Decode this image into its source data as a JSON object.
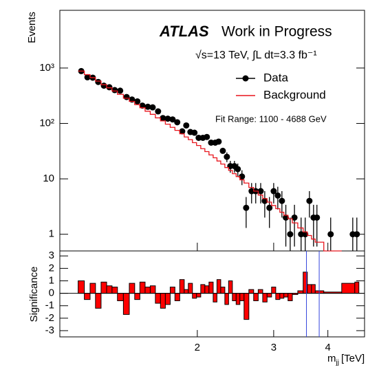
{
  "chart_data": [
    {
      "type": "scatter",
      "title": {
        "brand": "ATLAS",
        "status": "Work in Progress"
      },
      "subtitle": "√s=13 TeV, ∫L dt=3.3 fb⁻¹",
      "annotation": "Fit Range: 1100 - 4688 GeV",
      "y_label": "Events",
      "log_x": true,
      "log_y": true,
      "xlim": [
        0.964,
        4.86
      ],
      "ylim": [
        0.5,
        11000
      ],
      "yticks": [
        1,
        10,
        {
          "value": 100,
          "label": "10²"
        },
        {
          "value": 1000,
          "label": "10³"
        }
      ],
      "x": [
        1.08,
        1.116,
        1.148,
        1.182,
        1.218,
        1.254,
        1.29,
        1.328,
        1.374,
        1.414,
        1.455,
        1.494,
        1.538,
        1.578,
        1.624,
        1.666,
        1.71,
        1.754,
        1.798,
        1.846,
        1.886,
        1.928,
        1.97,
        2.014,
        2.06,
        2.104,
        2.152,
        2.2,
        2.24,
        2.29,
        2.34,
        2.383,
        2.436,
        2.48,
        2.535,
        2.592,
        2.668,
        2.727,
        2.8,
        2.861,
        2.933,
        3.0,
        3.066,
        3.134,
        3.2,
        3.275,
        3.35,
        3.47,
        3.547,
        3.627,
        3.707,
        3.774,
        4.06,
        4.565,
        4.665
      ],
      "series": [
        {
          "name": "Data",
          "color": "#000000",
          "style": "points",
          "values": [
            880,
            680,
            670,
            560,
            480,
            450,
            400,
            390,
            300,
            270,
            250,
            210,
            200,
            195,
            165,
            125,
            122,
            118,
            105,
            72,
            92,
            70,
            68,
            55,
            55,
            57,
            45,
            45,
            47,
            32,
            25,
            17,
            17,
            15,
            11,
            3,
            6,
            6,
            6,
            4,
            3,
            6,
            5,
            4,
            2,
            1,
            2,
            1,
            1,
            4,
            2,
            2,
            1,
            1,
            1
          ],
          "errors": [
            null,
            null,
            null,
            null,
            null,
            null,
            null,
            null,
            null,
            null,
            null,
            null,
            null,
            null,
            null,
            null,
            null,
            null,
            null,
            null,
            null,
            null,
            null,
            null,
            null,
            null,
            null,
            null,
            null,
            null,
            5,
            4.1,
            4.1,
            3.9,
            3.3,
            1.7,
            2.4,
            2.4,
            2.4,
            2,
            1.7,
            2.4,
            2.2,
            2,
            1.4,
            1,
            1.4,
            1,
            1,
            2,
            1.4,
            1.4,
            1,
            1,
            1
          ]
        },
        {
          "name": "Background",
          "color": "#e8141c",
          "style": "step",
          "values": [
            880,
            760,
            670,
            580,
            500,
            440,
            385,
            335,
            285,
            250,
            218,
            192,
            166,
            146,
            126,
            111,
            97,
            85,
            75,
            65,
            57,
            51,
            45,
            40,
            35,
            31,
            27,
            24,
            21,
            18.5,
            16,
            14.2,
            12.4,
            11,
            9.6,
            8.4,
            7,
            6,
            5.1,
            4.4,
            3.8,
            3.3,
            2.9,
            2.5,
            2.2,
            1.9,
            1.6,
            1.3,
            1.1,
            0.95,
            0.82,
            0.72,
            0.45,
            null,
            null
          ]
        }
      ]
    },
    {
      "type": "bar",
      "y_label": "Significance",
      "x_label": {
        "symbol": "m",
        "subscript": "jj",
        "unit": "[TeV]"
      },
      "log_x": true,
      "xlim": [
        0.964,
        4.86
      ],
      "xticks": [
        2,
        3,
        4
      ],
      "ylim": [
        -3.5,
        3.4
      ],
      "yticks": [
        -3,
        -2,
        -1,
        0,
        1,
        2,
        3
      ],
      "color": "#ff0000",
      "window_lines": {
        "color": "#3344dd",
        "x": [
          3.57,
          3.82
        ]
      },
      "values": [
        1.0,
        -0.5,
        0.8,
        -1.2,
        0.9,
        0.6,
        0.5,
        -0.6,
        -1.7,
        0.8,
        -0.5,
        0.9,
        0.5,
        0.6,
        -0.8,
        -1.2,
        -0.9,
        0.5,
        -0.6,
        1.1,
        0.3,
        0.8,
        -0.4,
        -0.3,
        0.7,
        0.6,
        0.9,
        -0.7,
        1.1,
        0.5,
        -0.9,
        1.0,
        -0.6,
        -0.9,
        -0.6,
        -2.1,
        0.3,
        -0.6,
        0.3,
        -0.7,
        -0.3,
        0.5,
        -0.5,
        -0.4,
        -0.3,
        -0.6,
        -0.1,
        0.2,
        1.7,
        0.7,
        0.7,
        0.2,
        0.1,
        0.8,
        0.9
      ]
    }
  ]
}
